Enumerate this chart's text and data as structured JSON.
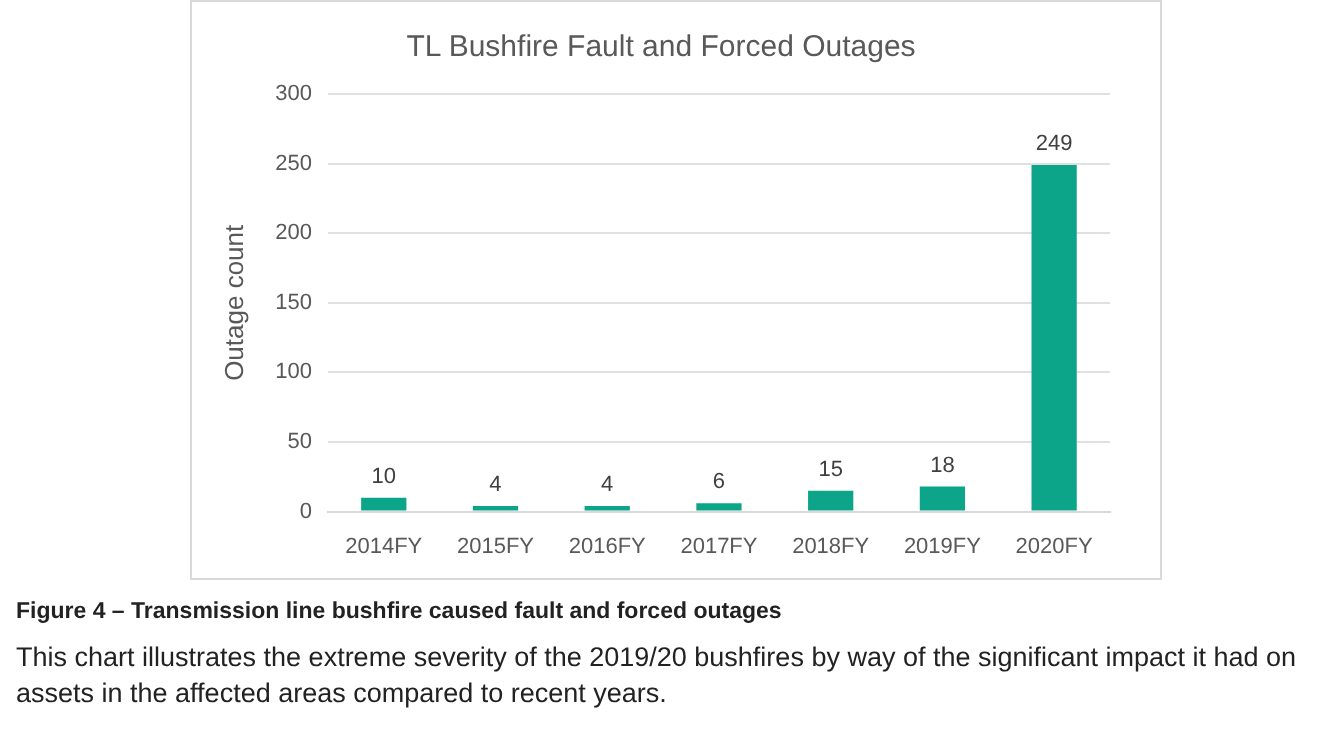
{
  "chart_data": {
    "type": "bar",
    "title": "TL Bushfire Fault and Forced Outages",
    "ylabel": "Outage count",
    "categories": [
      "2014FY",
      "2015FY",
      "2016FY",
      "2017FY",
      "2018FY",
      "2019FY",
      "2020FY"
    ],
    "values": [
      10,
      4,
      4,
      6,
      15,
      18,
      249
    ],
    "color": "#0ca58a",
    "ylim": [
      0,
      300
    ],
    "yticks": [
      0,
      50,
      100,
      150,
      200,
      250,
      300
    ],
    "grid": "y",
    "data_labels": true,
    "legend": false,
    "annotations": [
      "Figure 4 – Transmission line bushfire caused fault and forced outages",
      "This chart illustrates the extreme severity of the 2019/20 bushfires by way of the significant impact it had on assets in the affected areas compared to recent years."
    ]
  }
}
